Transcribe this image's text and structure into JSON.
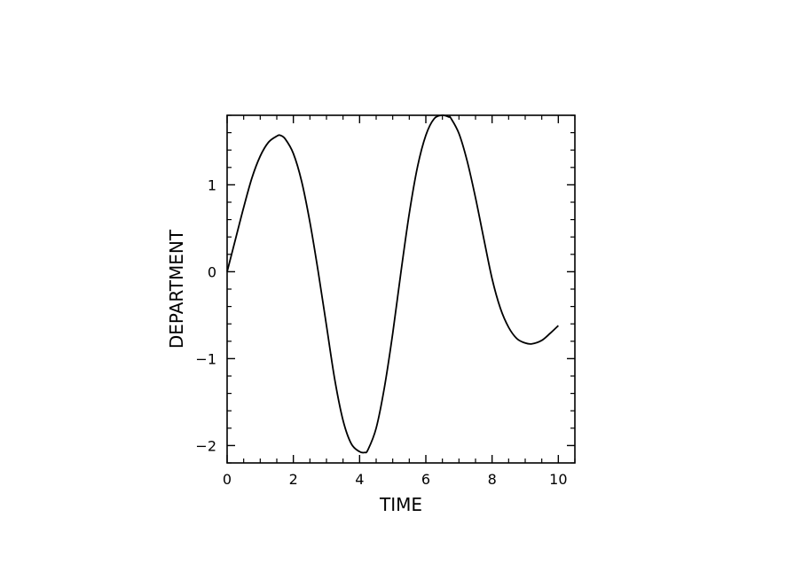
{
  "chart_data": {
    "type": "line",
    "xlabel": "TIME",
    "ylabel": "DEPARTMENT",
    "xlim": [
      0,
      10.5
    ],
    "ylim": [
      -2.2,
      1.8
    ],
    "x_ticks": [
      0,
      2,
      4,
      6,
      8,
      10
    ],
    "x_tick_labels": [
      "0",
      "2",
      "4",
      "6",
      "8",
      "10"
    ],
    "y_ticks": [
      -2,
      -1,
      0,
      1
    ],
    "y_tick_labels": [
      "−2",
      "−1",
      "0",
      "1"
    ],
    "grid": false,
    "colors": {
      "line": "#000000",
      "axis": "#000000",
      "background": "#ffffff"
    },
    "series": [
      {
        "x": [
          0,
          0.25,
          0.5,
          0.75,
          1.0,
          1.25,
          1.5,
          1.6,
          1.75,
          2.0,
          2.25,
          2.5,
          2.75,
          3.0,
          3.25,
          3.5,
          3.75,
          4.0,
          4.15,
          4.25,
          4.5,
          4.75,
          5.0,
          5.25,
          5.5,
          5.75,
          6.0,
          6.25,
          6.5,
          6.7,
          6.75,
          7.0,
          7.25,
          7.5,
          7.75,
          8.0,
          8.25,
          8.5,
          8.75,
          9.0,
          9.2,
          9.5,
          9.75,
          10.0
        ],
        "y": [
          0.0,
          0.37,
          0.74,
          1.08,
          1.33,
          1.49,
          1.56,
          1.57,
          1.53,
          1.36,
          1.04,
          0.57,
          0.0,
          -0.62,
          -1.24,
          -1.71,
          -1.98,
          -2.07,
          -2.08,
          -2.05,
          -1.8,
          -1.33,
          -0.71,
          0.0,
          0.67,
          1.21,
          1.57,
          1.76,
          1.8,
          1.78,
          1.77,
          1.59,
          1.27,
          0.85,
          0.38,
          -0.08,
          -0.42,
          -0.64,
          -0.77,
          -0.82,
          -0.83,
          -0.79,
          -0.71,
          -0.62
        ]
      }
    ]
  }
}
